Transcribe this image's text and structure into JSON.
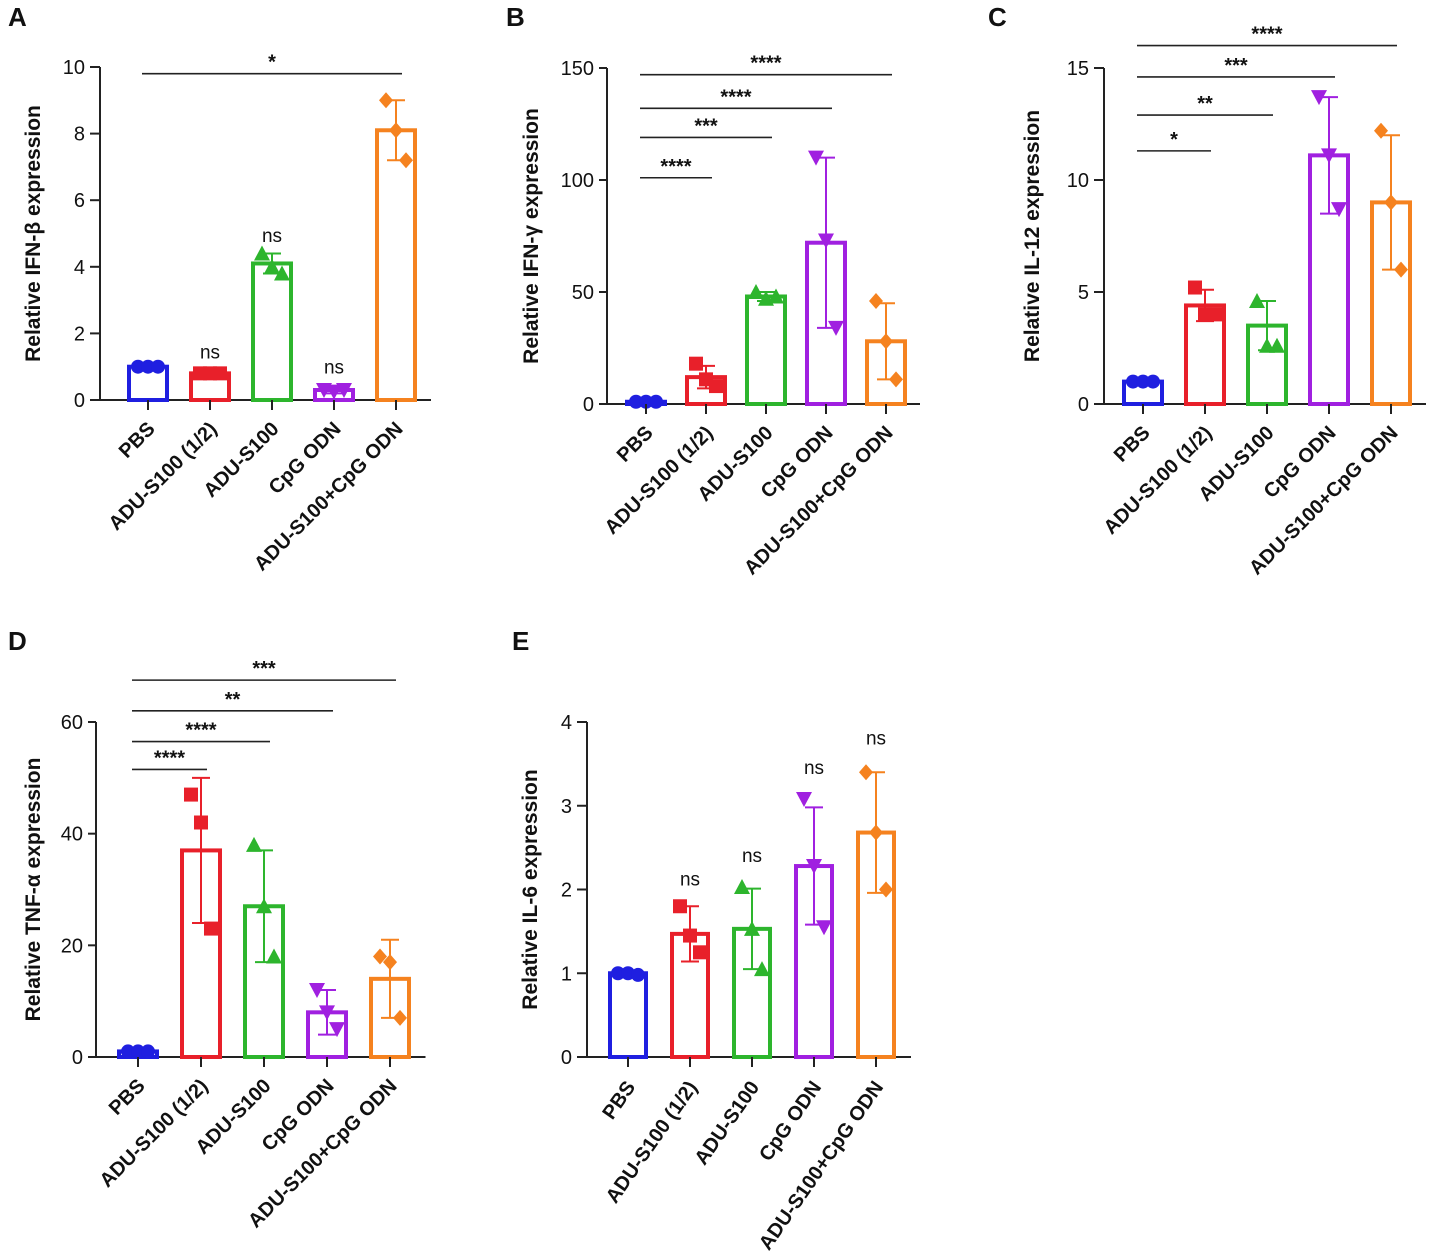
{
  "chart_data": [
    {
      "panel": "A",
      "type": "bar",
      "ylabel": "Relative IFN-β expression",
      "ylim": [
        0,
        10
      ],
      "yticks": [
        0,
        2,
        4,
        6,
        8,
        10
      ],
      "ytick_labels": [
        "0",
        "2",
        "4",
        "6",
        "8",
        "10"
      ],
      "categories": [
        "PBS",
        "ADU-S100 (1/2)",
        "ADU-S100",
        "CpG ODN",
        "ADU-S100+CpG ODN"
      ],
      "colors": [
        "#1f1fe0",
        "#e8202a",
        "#2db52d",
        "#a020e0",
        "#f5821f"
      ],
      "markers": [
        "circle",
        "square",
        "triangle",
        "triangle-down",
        "diamond"
      ],
      "values": [
        1.0,
        0.8,
        4.1,
        0.3,
        8.1
      ],
      "errors": [
        0.05,
        0.05,
        0.3,
        0.1,
        0.9
      ],
      "points": [
        [
          1.0,
          1.0,
          1.0
        ],
        [
          0.8,
          0.8,
          0.8
        ],
        [
          4.4,
          4.0,
          3.8
        ],
        [
          0.3,
          0.25,
          0.3
        ],
        [
          9.0,
          8.1,
          7.2
        ]
      ],
      "annotations": [
        {
          "text": "ns",
          "bar": 1,
          "y": 1.25
        },
        {
          "text": "ns",
          "bar": 2,
          "y": 4.75
        },
        {
          "text": "ns",
          "bar": 3,
          "y": 0.8
        }
      ],
      "brackets": [
        {
          "from": 0,
          "to": 4,
          "y": 9.8,
          "text": "*"
        }
      ]
    },
    {
      "panel": "B",
      "type": "bar",
      "ylabel": "Relative IFN-γ expression",
      "ylim": [
        0,
        150
      ],
      "yticks": [
        0,
        50,
        100,
        150
      ],
      "ytick_labels": [
        "0",
        "50",
        "100",
        "150"
      ],
      "categories": [
        "PBS",
        "ADU-S100 (1/2)",
        "ADU-S100",
        "CpG ODN",
        "ADU-S100+CpG ODN"
      ],
      "colors": [
        "#1f1fe0",
        "#e8202a",
        "#2db52d",
        "#a020e0",
        "#f5821f"
      ],
      "markers": [
        "circle",
        "square",
        "triangle",
        "triangle-down",
        "diamond"
      ],
      "values": [
        1,
        12,
        48,
        72,
        28
      ],
      "errors": [
        0.3,
        5,
        2,
        38,
        17
      ],
      "points": [
        [
          1,
          1,
          1
        ],
        [
          18,
          11,
          8
        ],
        [
          50,
          47,
          48
        ],
        [
          110,
          73,
          34
        ],
        [
          46,
          28,
          11
        ]
      ],
      "annotations": [],
      "brackets": [
        {
          "from": 0,
          "to": 1,
          "y": 101,
          "text": "****"
        },
        {
          "from": 0,
          "to": 2,
          "y": 119,
          "text": "***"
        },
        {
          "from": 0,
          "to": 3,
          "y": 132,
          "text": "****"
        },
        {
          "from": 0,
          "to": 4,
          "y": 147,
          "text": "****"
        }
      ]
    },
    {
      "panel": "C",
      "type": "bar",
      "ylabel": "Relative IL-12 expression",
      "ylim": [
        0,
        15
      ],
      "yticks": [
        0,
        5,
        10,
        15
      ],
      "ytick_labels": [
        "0",
        "5",
        "10",
        "15"
      ],
      "categories": [
        "PBS",
        "ADU-S100 (1/2)",
        "ADU-S100",
        "CpG ODN",
        "ADU-S100+CpG ODN"
      ],
      "colors": [
        "#1f1fe0",
        "#e8202a",
        "#2db52d",
        "#a020e0",
        "#f5821f"
      ],
      "markers": [
        "circle",
        "square",
        "triangle",
        "triangle-down",
        "diamond"
      ],
      "values": [
        1.0,
        4.4,
        3.5,
        11.1,
        9.0
      ],
      "errors": [
        0.05,
        0.7,
        1.1,
        2.6,
        3.0
      ],
      "points": [
        [
          1.0,
          1.0,
          1.0
        ],
        [
          5.2,
          4.0,
          4.0
        ],
        [
          4.6,
          2.6,
          2.6
        ],
        [
          13.7,
          11.1,
          8.7
        ],
        [
          12.2,
          9.0,
          6.0
        ]
      ],
      "annotations": [],
      "brackets": [
        {
          "from": 0,
          "to": 1,
          "y": 11.3,
          "text": "*"
        },
        {
          "from": 0,
          "to": 2,
          "y": 12.9,
          "text": "**"
        },
        {
          "from": 0,
          "to": 3,
          "y": 14.6,
          "text": "***"
        },
        {
          "from": 0,
          "to": 4,
          "y": 16.0,
          "text": "****"
        }
      ]
    },
    {
      "panel": "D",
      "type": "bar",
      "ylabel": "Relative TNF-α expression",
      "ylim": [
        0,
        60
      ],
      "yticks": [
        0,
        20,
        40,
        60
      ],
      "ytick_labels": [
        "0",
        "20",
        "40",
        "60"
      ],
      "categories": [
        "PBS",
        "ADU-S100 (1/2)",
        "ADU-S100",
        "CpG ODN",
        "ADU-S100+CpG ODN"
      ],
      "colors": [
        "#1f1fe0",
        "#e8202a",
        "#2db52d",
        "#a020e0",
        "#f5821f"
      ],
      "markers": [
        "circle",
        "square",
        "triangle",
        "triangle-down",
        "diamond"
      ],
      "values": [
        1.0,
        37,
        27,
        8,
        14
      ],
      "errors": [
        0.1,
        13,
        10,
        4,
        7
      ],
      "points": [
        [
          1.0,
          1.0,
          1.0
        ],
        [
          47,
          42,
          23
        ],
        [
          38,
          27,
          18
        ],
        [
          12,
          8,
          5
        ],
        [
          18,
          17,
          7
        ]
      ],
      "annotations": [],
      "brackets": [
        {
          "from": 0,
          "to": 1,
          "y": 51.5,
          "text": "****"
        },
        {
          "from": 0,
          "to": 2,
          "y": 56.5,
          "text": "****"
        },
        {
          "from": 0,
          "to": 3,
          "y": 62.0,
          "text": "**"
        },
        {
          "from": 0,
          "to": 4,
          "y": 67.5,
          "text": "***"
        }
      ]
    },
    {
      "panel": "E",
      "type": "bar",
      "ylabel": "Relative IL-6 expression",
      "ylim": [
        0,
        4
      ],
      "yticks": [
        0,
        1,
        2,
        3,
        4
      ],
      "ytick_labels": [
        "0",
        "1",
        "2",
        "3",
        "4"
      ],
      "categories": [
        "PBS",
        "ADU-S100 (1/2)",
        "ADU-S100",
        "CpG ODN",
        "ADU-S100+CpG ODN"
      ],
      "colors": [
        "#1f1fe0",
        "#e8202a",
        "#2db52d",
        "#a020e0",
        "#f5821f"
      ],
      "markers": [
        "circle",
        "square",
        "triangle",
        "triangle-down",
        "diamond"
      ],
      "values": [
        1.0,
        1.47,
        1.53,
        2.28,
        2.68
      ],
      "errors": [
        0.03,
        0.33,
        0.48,
        0.7,
        0.72
      ],
      "points": [
        [
          1.0,
          1.0,
          0.98
        ],
        [
          1.8,
          1.45,
          1.25
        ],
        [
          2.03,
          1.53,
          1.05
        ],
        [
          3.08,
          2.28,
          1.55
        ],
        [
          3.4,
          2.68,
          2.0
        ]
      ],
      "annotations": [
        {
          "text": "ns",
          "bar": 1,
          "y": 2.05
        },
        {
          "text": "ns",
          "bar": 2,
          "y": 2.33
        },
        {
          "text": "ns",
          "bar": 3,
          "y": 3.38
        },
        {
          "text": "ns",
          "bar": 4,
          "y": 3.73
        }
      ],
      "brackets": []
    }
  ]
}
